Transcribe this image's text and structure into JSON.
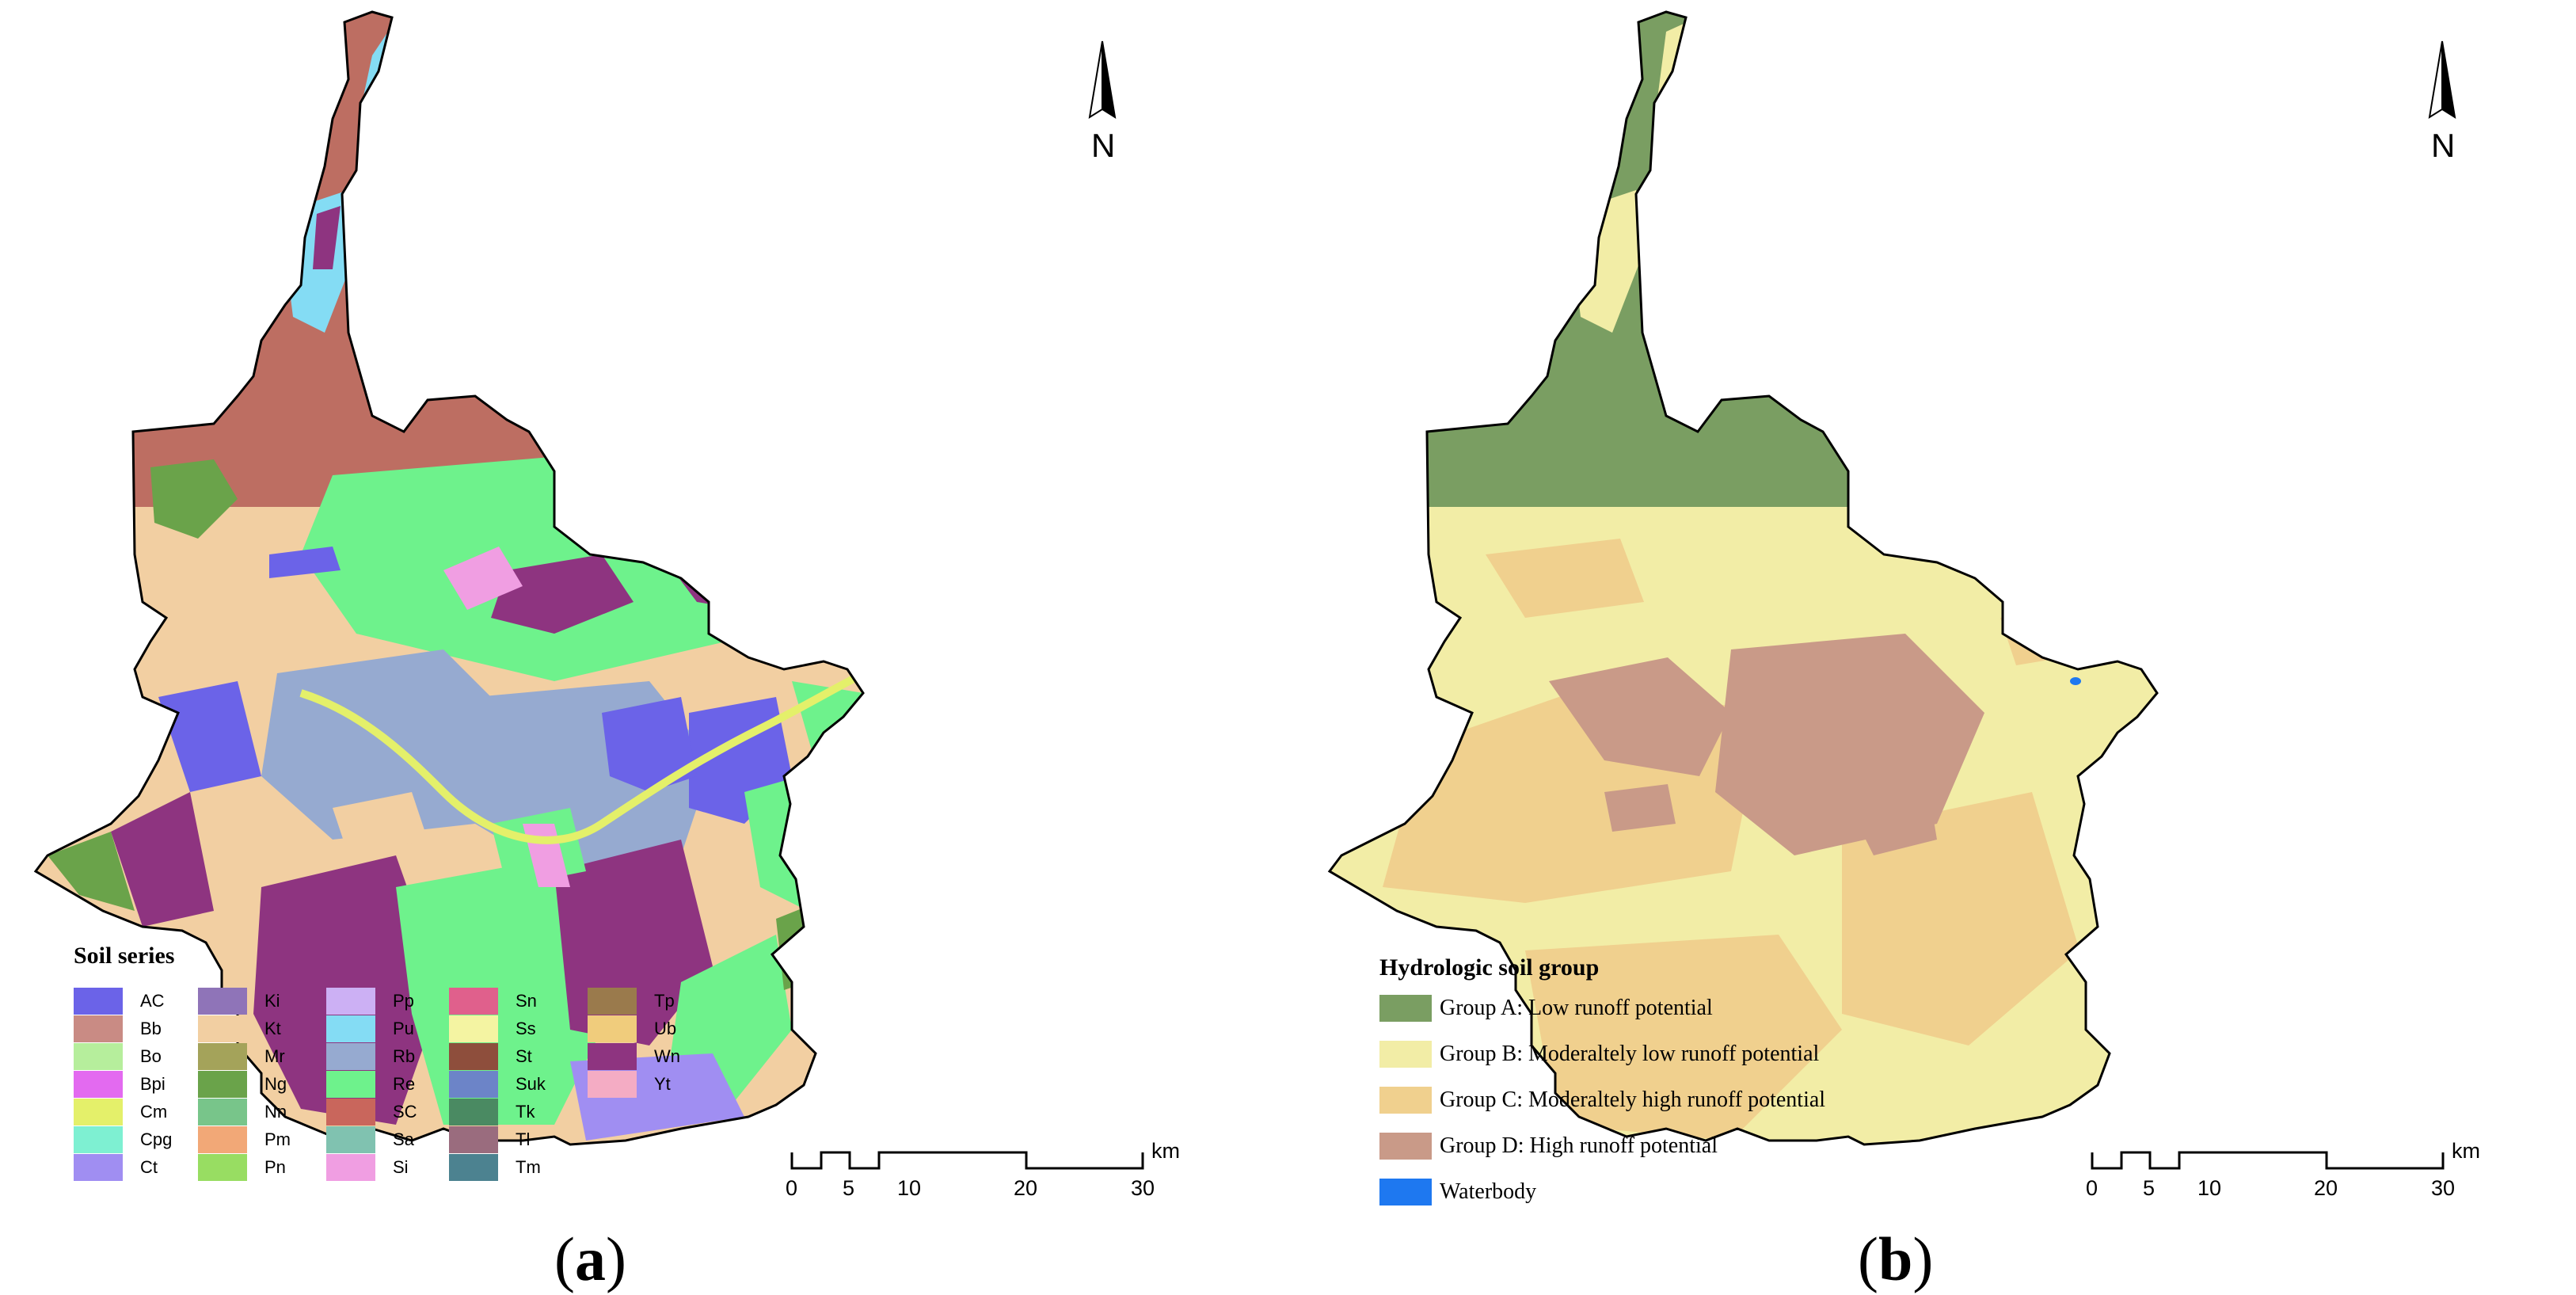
{
  "panel_a": {
    "caption_letter": "a",
    "north_label": "N",
    "legend_title": "Soil series",
    "soil_series": [
      {
        "code": "AC",
        "color": "#6b63e8"
      },
      {
        "code": "Bb",
        "color": "#c98b84"
      },
      {
        "code": "Bo",
        "color": "#b6ee9c"
      },
      {
        "code": "Bpi",
        "color": "#e36af0"
      },
      {
        "code": "Cm",
        "color": "#e4f06a"
      },
      {
        "code": "Cpg",
        "color": "#7ef0d2"
      },
      {
        "code": "Ct",
        "color": "#a08ef2"
      },
      {
        "code": "Ki",
        "color": "#8f74b8"
      },
      {
        "code": "Kt",
        "color": "#f2cfa2"
      },
      {
        "code": "Mr",
        "color": "#a4a35a"
      },
      {
        "code": "Ng",
        "color": "#6aa34a"
      },
      {
        "code": "Nn",
        "color": "#78c58a"
      },
      {
        "code": "Pm",
        "color": "#f2a877"
      },
      {
        "code": "Pn",
        "color": "#98dd62"
      },
      {
        "code": "Pp",
        "color": "#ccb0f4"
      },
      {
        "code": "Pu",
        "color": "#84dcf4"
      },
      {
        "code": "Rb",
        "color": "#96aad0"
      },
      {
        "code": "Re",
        "color": "#6ef28c"
      },
      {
        "code": "SC",
        "color": "#c9665c"
      },
      {
        "code": "Sa",
        "color": "#80c2b0"
      },
      {
        "code": "Si",
        "color": "#f09ee2"
      },
      {
        "code": "Sn",
        "color": "#e0608c"
      },
      {
        "code": "Ss",
        "color": "#f4f4a2"
      },
      {
        "code": "St",
        "color": "#8e4e3c"
      },
      {
        "code": "Suk",
        "color": "#6c84c8"
      },
      {
        "code": "Tk",
        "color": "#4a8a62"
      },
      {
        "code": "Tl",
        "color": "#9a6c7e"
      },
      {
        "code": "Tm",
        "color": "#4c8290"
      },
      {
        "code": "Tp",
        "color": "#9a7a4c"
      },
      {
        "code": "Ub",
        "color": "#f0cc7c"
      },
      {
        "code": "Wn",
        "color": "#8e3480"
      },
      {
        "code": "Yt",
        "color": "#f4acc4"
      }
    ],
    "scale": {
      "ticks": [
        "0",
        "5",
        "10",
        "20",
        "30"
      ],
      "unit": "km"
    }
  },
  "panel_b": {
    "caption_letter": "b",
    "north_label": "N",
    "legend_title": "Hydrologic soil group",
    "groups": [
      {
        "label": "Group A: Low runoff potential",
        "color": "#7a9e62"
      },
      {
        "label": "Group B: Moderaltely low runoff potential",
        "color": "#f2eda6"
      },
      {
        "label": "Group C: Moderaltely high runoff potential",
        "color": "#f0d08e"
      },
      {
        "label": "Group D: High runoff potential",
        "color": "#c99a88"
      },
      {
        "label": "Waterbody",
        "color": "#1e78f0"
      }
    ],
    "scale": {
      "ticks": [
        "0",
        "5",
        "10",
        "20",
        "30"
      ],
      "unit": "km"
    }
  }
}
